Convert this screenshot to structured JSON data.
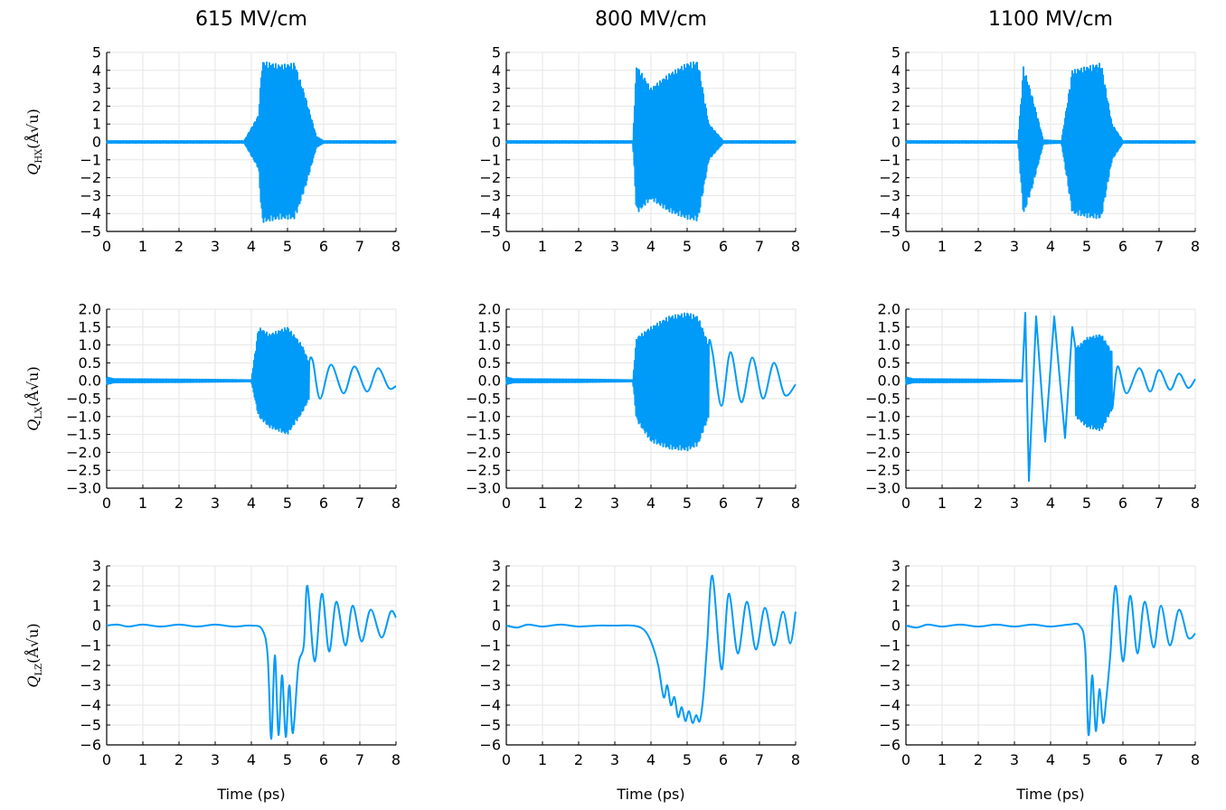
{
  "columns": [
    "615 MV/cm",
    "800 MV/cm",
    "1100 MV/cm"
  ],
  "row_labels": [
    {
      "sym": "Q",
      "sub": "HX",
      "unit": "(Å√u)"
    },
    {
      "sym": "Q",
      "sub": "LX",
      "unit": "(Å√u)"
    },
    {
      "sym": "Q",
      "sub": "LZ",
      "unit": "(Å√u)"
    }
  ],
  "xlabel": "Time (ps)",
  "series_color": "#009AF9",
  "chart_data": [
    {
      "type": "line",
      "row": 0,
      "col": 0,
      "title": "615 MV/cm",
      "ylabel": "Q_HX (Å√u)",
      "xlabel": "",
      "xlim": [
        0,
        8
      ],
      "ylim": [
        -5,
        5
      ],
      "xticks": [
        0,
        1,
        2,
        3,
        4,
        5,
        6,
        7,
        8
      ],
      "yticks": [
        -5,
        -4,
        -3,
        -2,
        -1,
        0,
        1,
        2,
        3,
        4,
        5
      ],
      "grid": true,
      "osc_envelope": {
        "x": [
          0,
          3.8,
          4.2,
          4.3,
          4.8,
          5.2,
          5.5,
          5.8,
          6.0,
          8
        ],
        "upper": [
          0.05,
          0.05,
          1.5,
          4.5,
          4.3,
          4.4,
          2.5,
          0.3,
          0.05,
          0.05
        ],
        "lower": [
          -0.05,
          -0.05,
          -1.5,
          -4.5,
          -4.3,
          -4.3,
          -2.5,
          -0.3,
          -0.05,
          -0.05
        ]
      }
    },
    {
      "type": "line",
      "row": 0,
      "col": 1,
      "title": "800 MV/cm",
      "ylabel": "",
      "xlabel": "",
      "xlim": [
        0,
        8
      ],
      "ylim": [
        -5,
        5
      ],
      "xticks": [
        0,
        1,
        2,
        3,
        4,
        5,
        6,
        7,
        8
      ],
      "yticks": [
        -5,
        -4,
        -3,
        -2,
        -1,
        0,
        1,
        2,
        3,
        4,
        5
      ],
      "grid": true,
      "osc_envelope": {
        "x": [
          0,
          3.5,
          3.6,
          4.0,
          4.5,
          5.0,
          5.3,
          5.6,
          6.0,
          8
        ],
        "upper": [
          0.05,
          0.05,
          4.3,
          3.0,
          3.8,
          4.4,
          4.5,
          1.0,
          0.05,
          0.05
        ],
        "lower": [
          -0.05,
          -0.05,
          -4.0,
          -3.2,
          -3.9,
          -4.3,
          -4.4,
          -1.0,
          -0.05,
          -0.05
        ]
      }
    },
    {
      "type": "line",
      "row": 0,
      "col": 2,
      "title": "1100 MV/cm",
      "ylabel": "",
      "xlabel": "",
      "xlim": [
        0,
        8
      ],
      "ylim": [
        -5,
        5
      ],
      "xticks": [
        0,
        1,
        2,
        3,
        4,
        5,
        6,
        7,
        8
      ],
      "yticks": [
        -5,
        -4,
        -3,
        -2,
        -1,
        0,
        1,
        2,
        3,
        4,
        5
      ],
      "grid": true,
      "osc_envelope": {
        "x": [
          0,
          3.1,
          3.25,
          3.5,
          3.8,
          4.3,
          4.6,
          5.0,
          5.4,
          5.7,
          6.0,
          8
        ],
        "upper": [
          0.05,
          0.05,
          4.2,
          2.5,
          0.1,
          0.05,
          4.0,
          4.2,
          4.4,
          1.0,
          0.05,
          0.05
        ],
        "lower": [
          -0.05,
          -0.05,
          -4.1,
          -2.5,
          -0.1,
          -0.05,
          -4.0,
          -4.2,
          -4.3,
          -1.0,
          -0.05,
          -0.05
        ]
      }
    },
    {
      "type": "line",
      "row": 1,
      "col": 0,
      "title": "",
      "ylabel": "Q_LX (Å√u)",
      "xlabel": "",
      "xlim": [
        0,
        8
      ],
      "ylim": [
        -3,
        2
      ],
      "xticks": [
        0,
        1,
        2,
        3,
        4,
        5,
        6,
        7,
        8
      ],
      "yticks": [
        -3.0,
        -2.5,
        -2.0,
        -1.5,
        -1.0,
        -0.5,
        0.0,
        0.5,
        1.0,
        1.5,
        2.0
      ],
      "grid": true,
      "osc_envelope": {
        "x": [
          0,
          0.2,
          2.0,
          4.0,
          4.2,
          4.5,
          5.0,
          5.4,
          5.6
        ],
        "upper": [
          0.1,
          0.05,
          0.04,
          0.02,
          1.5,
          1.3,
          1.5,
          1.0,
          0.5
        ],
        "lower": [
          -0.1,
          -0.05,
          -0.04,
          -0.02,
          -1.0,
          -1.3,
          -1.5,
          -0.9,
          -0.5
        ]
      },
      "ringdown": {
        "peaks": [
          [
            5.7,
            0.55
          ],
          [
            5.9,
            -0.5
          ],
          [
            6.2,
            0.45
          ],
          [
            6.55,
            -0.35
          ],
          [
            6.85,
            0.4
          ],
          [
            7.2,
            -0.3
          ],
          [
            7.5,
            0.35
          ],
          [
            7.8,
            -0.2
          ],
          [
            8.0,
            -0.15
          ]
        ]
      }
    },
    {
      "type": "line",
      "row": 1,
      "col": 1,
      "title": "",
      "ylabel": "",
      "xlabel": "",
      "xlim": [
        0,
        8
      ],
      "ylim": [
        -3,
        2
      ],
      "xticks": [
        0,
        1,
        2,
        3,
        4,
        5,
        6,
        7,
        8
      ],
      "yticks": [
        -3.0,
        -2.5,
        -2.0,
        -1.5,
        -1.0,
        -0.5,
        0.0,
        0.5,
        1.0,
        1.5,
        2.0
      ],
      "grid": true,
      "osc_envelope": {
        "x": [
          0,
          0.2,
          2.0,
          3.5,
          3.6,
          4.0,
          4.5,
          5.0,
          5.3,
          5.6
        ],
        "upper": [
          0.1,
          0.05,
          0.04,
          0.02,
          1.2,
          1.5,
          1.8,
          1.9,
          1.8,
          1.0
        ],
        "lower": [
          -0.1,
          -0.05,
          -0.04,
          -0.02,
          -1.1,
          -1.7,
          -1.9,
          -1.95,
          -1.8,
          -1.0
        ]
      },
      "ringdown": {
        "peaks": [
          [
            5.7,
            0.8
          ],
          [
            5.95,
            -0.7
          ],
          [
            6.2,
            0.8
          ],
          [
            6.5,
            -0.6
          ],
          [
            6.8,
            0.65
          ],
          [
            7.1,
            -0.5
          ],
          [
            7.4,
            0.5
          ],
          [
            7.7,
            -0.4
          ],
          [
            8.0,
            -0.1
          ]
        ]
      }
    },
    {
      "type": "line",
      "row": 1,
      "col": 2,
      "title": "",
      "ylabel": "",
      "xlabel": "",
      "xlim": [
        0,
        8
      ],
      "ylim": [
        -3,
        2
      ],
      "xticks": [
        0,
        1,
        2,
        3,
        4,
        5,
        6,
        7,
        8
      ],
      "yticks": [
        -3.0,
        -2.5,
        -2.0,
        -1.5,
        -1.0,
        -0.5,
        0.0,
        0.5,
        1.0,
        1.5,
        2.0
      ],
      "grid": true,
      "big_swings": [
        [
          3.3,
          1.9
        ],
        [
          3.4,
          -2.8
        ],
        [
          3.6,
          1.8
        ],
        [
          3.85,
          -1.7
        ],
        [
          4.1,
          1.8
        ],
        [
          4.4,
          -1.6
        ],
        [
          4.6,
          1.5
        ]
      ],
      "osc_envelope": {
        "x": [
          0,
          0.2,
          2.0,
          3.2,
          4.8,
          5.0,
          5.4,
          5.7
        ],
        "upper": [
          0.1,
          0.05,
          0.04,
          0.02,
          1.0,
          1.2,
          1.3,
          0.8
        ],
        "lower": [
          -0.1,
          -0.05,
          -0.04,
          -0.02,
          -1.1,
          -1.3,
          -1.4,
          -0.8
        ]
      },
      "ringdown": {
        "peaks": [
          [
            5.85,
            0.4
          ],
          [
            6.1,
            -0.35
          ],
          [
            6.45,
            0.35
          ],
          [
            6.75,
            -0.3
          ],
          [
            7.0,
            0.3
          ],
          [
            7.3,
            -0.25
          ],
          [
            7.55,
            0.2
          ],
          [
            7.8,
            -0.2
          ],
          [
            8.0,
            0.05
          ]
        ]
      }
    },
    {
      "type": "line",
      "row": 2,
      "col": 0,
      "title": "",
      "ylabel": "Q_LZ (Å√u)",
      "xlabel": "Time (ps)",
      "xlim": [
        0,
        8
      ],
      "ylim": [
        -6,
        3
      ],
      "xticks": [
        0,
        1,
        2,
        3,
        4,
        5,
        6,
        7,
        8
      ],
      "yticks": [
        -6,
        -5,
        -4,
        -3,
        -2,
        -1,
        0,
        1,
        2,
        3
      ],
      "grid": true,
      "points": [
        [
          0,
          0
        ],
        [
          0.3,
          0.05
        ],
        [
          0.6,
          -0.05
        ],
        [
          1.0,
          0.05
        ],
        [
          1.5,
          -0.05
        ],
        [
          2.0,
          0.05
        ],
        [
          2.5,
          -0.05
        ],
        [
          3.0,
          0.05
        ],
        [
          3.5,
          -0.05
        ],
        [
          4.0,
          0.0
        ],
        [
          4.3,
          -0.2
        ],
        [
          4.45,
          -1.5
        ],
        [
          4.55,
          -5.7
        ],
        [
          4.65,
          -1.5
        ],
        [
          4.75,
          -5.5
        ],
        [
          4.85,
          -2.5
        ],
        [
          4.95,
          -5.6
        ],
        [
          5.05,
          -3.0
        ],
        [
          5.15,
          -5.4
        ],
        [
          5.3,
          -2.0
        ],
        [
          5.45,
          -1.0
        ],
        [
          5.55,
          2.0
        ],
        [
          5.75,
          -1.8
        ],
        [
          5.95,
          1.6
        ],
        [
          6.15,
          -1.3
        ],
        [
          6.35,
          1.2
        ],
        [
          6.6,
          -1.0
        ],
        [
          6.8,
          1.0
        ],
        [
          7.05,
          -0.8
        ],
        [
          7.3,
          0.8
        ],
        [
          7.6,
          -0.6
        ],
        [
          7.85,
          0.7
        ],
        [
          8.0,
          0.4
        ]
      ]
    },
    {
      "type": "line",
      "row": 2,
      "col": 1,
      "title": "",
      "ylabel": "",
      "xlabel": "Time (ps)",
      "xlim": [
        0,
        8
      ],
      "ylim": [
        -6,
        3
      ],
      "xticks": [
        0,
        1,
        2,
        3,
        4,
        5,
        6,
        7,
        8
      ],
      "yticks": [
        -6,
        -5,
        -4,
        -3,
        -2,
        -1,
        0,
        1,
        2,
        3
      ],
      "grid": true,
      "points": [
        [
          0,
          0
        ],
        [
          0.3,
          -0.1
        ],
        [
          0.6,
          0.05
        ],
        [
          1.0,
          -0.05
        ],
        [
          1.5,
          0.05
        ],
        [
          2.0,
          -0.05
        ],
        [
          2.5,
          0.0
        ],
        [
          3.0,
          0.0
        ],
        [
          3.5,
          0.0
        ],
        [
          3.8,
          -0.2
        ],
        [
          4.0,
          -0.8
        ],
        [
          4.2,
          -2.0
        ],
        [
          4.35,
          -3.6
        ],
        [
          4.45,
          -3.0
        ],
        [
          4.55,
          -4.0
        ],
        [
          4.65,
          -3.6
        ],
        [
          4.75,
          -4.6
        ],
        [
          4.85,
          -4.1
        ],
        [
          4.95,
          -4.8
        ],
        [
          5.05,
          -4.3
        ],
        [
          5.15,
          -4.9
        ],
        [
          5.25,
          -4.5
        ],
        [
          5.35,
          -4.8
        ],
        [
          5.45,
          -3.5
        ],
        [
          5.55,
          -1.0
        ],
        [
          5.7,
          2.5
        ],
        [
          5.95,
          -2.2
        ],
        [
          6.15,
          1.6
        ],
        [
          6.4,
          -1.4
        ],
        [
          6.65,
          1.2
        ],
        [
          6.9,
          -1.2
        ],
        [
          7.15,
          0.9
        ],
        [
          7.4,
          -1.0
        ],
        [
          7.65,
          0.7
        ],
        [
          7.85,
          -0.9
        ],
        [
          8.0,
          0.7
        ]
      ]
    },
    {
      "type": "line",
      "row": 2,
      "col": 2,
      "title": "",
      "ylabel": "",
      "xlabel": "Time (ps)",
      "xlim": [
        0,
        8
      ],
      "ylim": [
        -6,
        3
      ],
      "xticks": [
        0,
        1,
        2,
        3,
        4,
        5,
        6,
        7,
        8
      ],
      "yticks": [
        -6,
        -5,
        -4,
        -3,
        -2,
        -1,
        0,
        1,
        2,
        3
      ],
      "grid": true,
      "points": [
        [
          0,
          0
        ],
        [
          0.3,
          -0.1
        ],
        [
          0.6,
          0.05
        ],
        [
          1.0,
          -0.05
        ],
        [
          1.5,
          0.05
        ],
        [
          2.0,
          -0.05
        ],
        [
          2.5,
          0.05
        ],
        [
          3.0,
          -0.05
        ],
        [
          3.5,
          0.05
        ],
        [
          4.0,
          -0.05
        ],
        [
          4.5,
          0.05
        ],
        [
          4.8,
          0.0
        ],
        [
          4.95,
          -1.0
        ],
        [
          5.05,
          -5.5
        ],
        [
          5.15,
          -2.5
        ],
        [
          5.25,
          -5.3
        ],
        [
          5.35,
          -3.2
        ],
        [
          5.45,
          -4.9
        ],
        [
          5.55,
          -3.5
        ],
        [
          5.65,
          -1.5
        ],
        [
          5.8,
          2.0
        ],
        [
          6.0,
          -1.8
        ],
        [
          6.2,
          1.5
        ],
        [
          6.4,
          -1.4
        ],
        [
          6.6,
          1.2
        ],
        [
          6.85,
          -1.1
        ],
        [
          7.05,
          1.0
        ],
        [
          7.3,
          -1.0
        ],
        [
          7.55,
          0.8
        ],
        [
          7.8,
          -0.6
        ],
        [
          8.0,
          -0.4
        ]
      ]
    }
  ]
}
